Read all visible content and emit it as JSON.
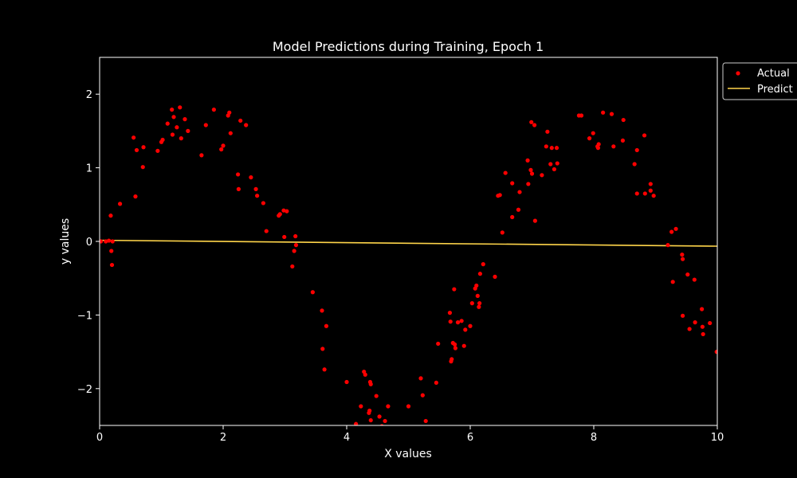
{
  "chart_data": {
    "type": "scatter",
    "title": "Model Predictions during Training, Epoch 1",
    "xlabel": "X values",
    "ylabel": "y values",
    "xlim": [
      0,
      10
    ],
    "ylim": [
      -2.5,
      2.5
    ],
    "x_ticks": [
      "0",
      "2",
      "4",
      "6",
      "8",
      "10"
    ],
    "y_ticks": [
      "−2",
      "−1",
      "0",
      "1",
      "2"
    ],
    "x_tick_values": [
      0,
      2,
      4,
      6,
      8,
      10
    ],
    "y_tick_values": [
      -2,
      -1,
      0,
      1,
      2
    ],
    "grid": false,
    "legend_position": "top-right",
    "series": [
      {
        "name": "Actual",
        "type": "scatter",
        "color": "#ff0000",
        "points": [
          [
            0.02,
            0.0
          ],
          [
            0.1,
            0.0
          ],
          [
            0.15,
            0.01
          ],
          [
            0.18,
            0.35
          ],
          [
            0.19,
            -0.13
          ],
          [
            0.2,
            -0.32
          ],
          [
            0.21,
            0.0
          ],
          [
            0.33,
            0.51
          ],
          [
            0.55,
            1.41
          ],
          [
            0.58,
            0.61
          ],
          [
            0.6,
            1.24
          ],
          [
            0.7,
            1.01
          ],
          [
            0.71,
            1.28
          ],
          [
            0.94,
            1.23
          ],
          [
            1.0,
            1.35
          ],
          [
            1.02,
            1.38
          ],
          [
            1.1,
            1.6
          ],
          [
            1.17,
            1.79
          ],
          [
            1.18,
            1.45
          ],
          [
            1.2,
            1.69
          ],
          [
            1.25,
            1.55
          ],
          [
            1.3,
            1.82
          ],
          [
            1.32,
            1.4
          ],
          [
            1.38,
            1.66
          ],
          [
            1.43,
            1.5
          ],
          [
            1.65,
            1.17
          ],
          [
            1.72,
            1.58
          ],
          [
            1.85,
            1.79
          ],
          [
            1.97,
            1.25
          ],
          [
            2.0,
            1.3
          ],
          [
            2.08,
            1.71
          ],
          [
            2.1,
            1.75
          ],
          [
            2.12,
            1.47
          ],
          [
            2.24,
            0.91
          ],
          [
            2.25,
            0.71
          ],
          [
            2.28,
            1.64
          ],
          [
            2.37,
            1.58
          ],
          [
            2.45,
            0.87
          ],
          [
            2.53,
            0.71
          ],
          [
            2.55,
            0.62
          ],
          [
            2.65,
            0.52
          ],
          [
            2.7,
            0.14
          ],
          [
            2.9,
            0.35
          ],
          [
            2.92,
            0.37
          ],
          [
            2.98,
            0.42
          ],
          [
            2.99,
            0.06
          ],
          [
            3.03,
            0.41
          ],
          [
            3.12,
            -0.34
          ],
          [
            3.15,
            -0.13
          ],
          [
            3.17,
            0.07
          ],
          [
            3.18,
            -0.05
          ],
          [
            3.45,
            -0.69
          ],
          [
            3.6,
            -0.94
          ],
          [
            3.61,
            -1.46
          ],
          [
            3.64,
            -1.74
          ],
          [
            3.67,
            -1.15
          ],
          [
            4.0,
            -1.91
          ],
          [
            4.15,
            -2.48
          ],
          [
            4.23,
            -2.24
          ],
          [
            4.28,
            -1.77
          ],
          [
            4.3,
            -1.81
          ],
          [
            4.36,
            -2.33
          ],
          [
            4.37,
            -2.3
          ],
          [
            4.38,
            -1.91
          ],
          [
            4.39,
            -1.94
          ],
          [
            4.39,
            -2.43
          ],
          [
            4.48,
            -2.1
          ],
          [
            4.53,
            -2.38
          ],
          [
            4.57,
            -2.51
          ],
          [
            4.62,
            -2.44
          ],
          [
            4.67,
            -2.24
          ],
          [
            5.0,
            -2.24
          ],
          [
            5.2,
            -1.86
          ],
          [
            5.23,
            -2.09
          ],
          [
            5.28,
            -2.44
          ],
          [
            5.45,
            -1.92
          ],
          [
            5.48,
            -1.39
          ],
          [
            5.67,
            -0.97
          ],
          [
            5.68,
            -1.09
          ],
          [
            5.69,
            -1.63
          ],
          [
            5.7,
            -1.6
          ],
          [
            5.72,
            -1.38
          ],
          [
            5.74,
            -0.65
          ],
          [
            5.75,
            -1.4
          ],
          [
            5.76,
            -1.45
          ],
          [
            5.8,
            -1.1
          ],
          [
            5.86,
            -1.08
          ],
          [
            5.9,
            -1.42
          ],
          [
            5.92,
            -1.2
          ],
          [
            6.0,
            -1.15
          ],
          [
            6.03,
            -0.84
          ],
          [
            6.08,
            -0.64
          ],
          [
            6.1,
            -0.6
          ],
          [
            6.12,
            -0.74
          ],
          [
            6.14,
            -0.89
          ],
          [
            6.15,
            -0.84
          ],
          [
            6.16,
            -0.44
          ],
          [
            6.21,
            -0.31
          ],
          [
            6.4,
            -0.48
          ],
          [
            6.45,
            0.62
          ],
          [
            6.48,
            0.63
          ],
          [
            6.52,
            0.12
          ],
          [
            6.57,
            0.93
          ],
          [
            6.68,
            0.79
          ],
          [
            6.68,
            0.33
          ],
          [
            6.78,
            0.43
          ],
          [
            6.8,
            0.67
          ],
          [
            6.93,
            1.1
          ],
          [
            6.94,
            0.78
          ],
          [
            6.98,
            0.97
          ],
          [
            6.99,
            1.62
          ],
          [
            7.0,
            0.92
          ],
          [
            7.04,
            1.58
          ],
          [
            7.05,
            0.28
          ],
          [
            7.16,
            0.9
          ],
          [
            7.23,
            1.29
          ],
          [
            7.25,
            1.49
          ],
          [
            7.3,
            1.05
          ],
          [
            7.32,
            1.27
          ],
          [
            7.36,
            0.98
          ],
          [
            7.4,
            1.27
          ],
          [
            7.41,
            1.06
          ],
          [
            7.76,
            1.71
          ],
          [
            7.8,
            1.71
          ],
          [
            7.93,
            1.4
          ],
          [
            7.99,
            1.47
          ],
          [
            8.06,
            1.29
          ],
          [
            8.07,
            1.27
          ],
          [
            8.08,
            1.32
          ],
          [
            8.15,
            1.75
          ],
          [
            8.29,
            1.73
          ],
          [
            8.32,
            1.29
          ],
          [
            8.47,
            1.37
          ],
          [
            8.48,
            1.65
          ],
          [
            8.66,
            1.05
          ],
          [
            8.7,
            0.65
          ],
          [
            8.7,
            1.24
          ],
          [
            8.82,
            1.44
          ],
          [
            8.83,
            0.65
          ],
          [
            8.92,
            0.78
          ],
          [
            8.92,
            0.69
          ],
          [
            8.97,
            0.62
          ],
          [
            9.2,
            -0.05
          ],
          [
            9.26,
            0.13
          ],
          [
            9.28,
            -0.55
          ],
          [
            9.33,
            0.17
          ],
          [
            9.43,
            -0.18
          ],
          [
            9.44,
            -0.24
          ],
          [
            9.44,
            -1.01
          ],
          [
            9.52,
            -0.45
          ],
          [
            9.55,
            -1.19
          ],
          [
            9.63,
            -0.52
          ],
          [
            9.64,
            -1.1
          ],
          [
            9.75,
            -0.92
          ],
          [
            9.76,
            -1.16
          ],
          [
            9.77,
            -1.26
          ],
          [
            9.88,
            -1.11
          ],
          [
            9.99,
            -1.5
          ]
        ]
      },
      {
        "name": "Predicted",
        "type": "line",
        "color": "#ffd54a",
        "x": [
          0,
          10
        ],
        "y": [
          0.015,
          -0.065
        ]
      }
    ],
    "legend_labels": [
      "Actual",
      "Predict"
    ]
  }
}
